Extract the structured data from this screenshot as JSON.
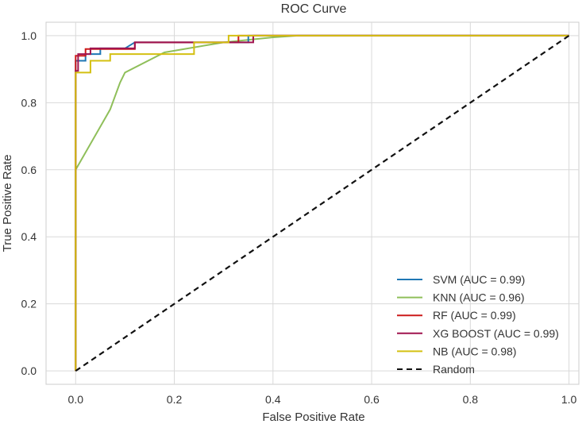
{
  "chart_data": {
    "type": "line",
    "title": "ROC Curve",
    "xlabel": "False Positive Rate",
    "ylabel": "True Positive Rate",
    "xlim": [
      -0.06,
      1.02
    ],
    "ylim": [
      -0.04,
      1.04
    ],
    "xticks": [
      0.0,
      0.2,
      0.4,
      0.6,
      0.8,
      1.0
    ],
    "yticks": [
      0.0,
      0.2,
      0.4,
      0.6,
      0.8,
      1.0
    ],
    "xtick_labels": [
      "0.0",
      "0.2",
      "0.4",
      "0.6",
      "0.8",
      "1.0"
    ],
    "ytick_labels": [
      "0.0",
      "0.2",
      "0.4",
      "0.6",
      "0.8",
      "1.0"
    ],
    "grid": true,
    "legend_position": "bottom-right",
    "series": [
      {
        "name": "SVM (AUC = 0.99)",
        "color": "#1f77b4",
        "x": [
          0,
          0,
          0.02,
          0.02,
          0.05,
          0.05,
          0.1,
          0.12,
          0.35,
          0.35,
          1.0
        ],
        "y": [
          0,
          0.925,
          0.925,
          0.945,
          0.945,
          0.962,
          0.962,
          0.98,
          0.98,
          1.0,
          1.0
        ]
      },
      {
        "name": "KNN (AUC = 0.96)",
        "color": "#8fbf5a",
        "x": [
          0,
          0,
          0.07,
          0.09,
          0.1,
          0.18,
          0.3,
          0.4,
          0.45,
          1.0
        ],
        "y": [
          0,
          0.6,
          0.78,
          0.86,
          0.89,
          0.95,
          0.98,
          0.995,
          1.0,
          1.0
        ]
      },
      {
        "name": "RF (AUC = 0.99)",
        "color": "#cc1a1a",
        "x": [
          0,
          0,
          0.02,
          0.02,
          0.12,
          0.12,
          0.33,
          0.33,
          1.0
        ],
        "y": [
          0,
          0.94,
          0.94,
          0.96,
          0.96,
          0.98,
          0.98,
          1.0,
          1.0
        ]
      },
      {
        "name": "XG  BOOST (AUC = 0.99)",
        "color": "#a0134f",
        "x": [
          0,
          0,
          0.005,
          0.005,
          0.03,
          0.03,
          0.12,
          0.12,
          0.33,
          0.33,
          0.36,
          0.36,
          1.0
        ],
        "y": [
          0,
          0.895,
          0.895,
          0.945,
          0.945,
          0.962,
          0.962,
          0.98,
          0.98,
          0.98,
          0.98,
          1.0,
          1.0
        ]
      },
      {
        "name": "NB (AUC = 0.98)",
        "color": "#d4c012",
        "x": [
          0,
          0,
          0.03,
          0.03,
          0.07,
          0.07,
          0.16,
          0.24,
          0.24,
          0.31,
          0.31,
          1.0
        ],
        "y": [
          0,
          0.89,
          0.89,
          0.925,
          0.925,
          0.945,
          0.945,
          0.945,
          0.98,
          0.98,
          1.0,
          1.0
        ]
      },
      {
        "name": "Random",
        "color": "#111111",
        "dashed": true,
        "x": [
          0,
          1
        ],
        "y": [
          0,
          1
        ]
      }
    ]
  }
}
